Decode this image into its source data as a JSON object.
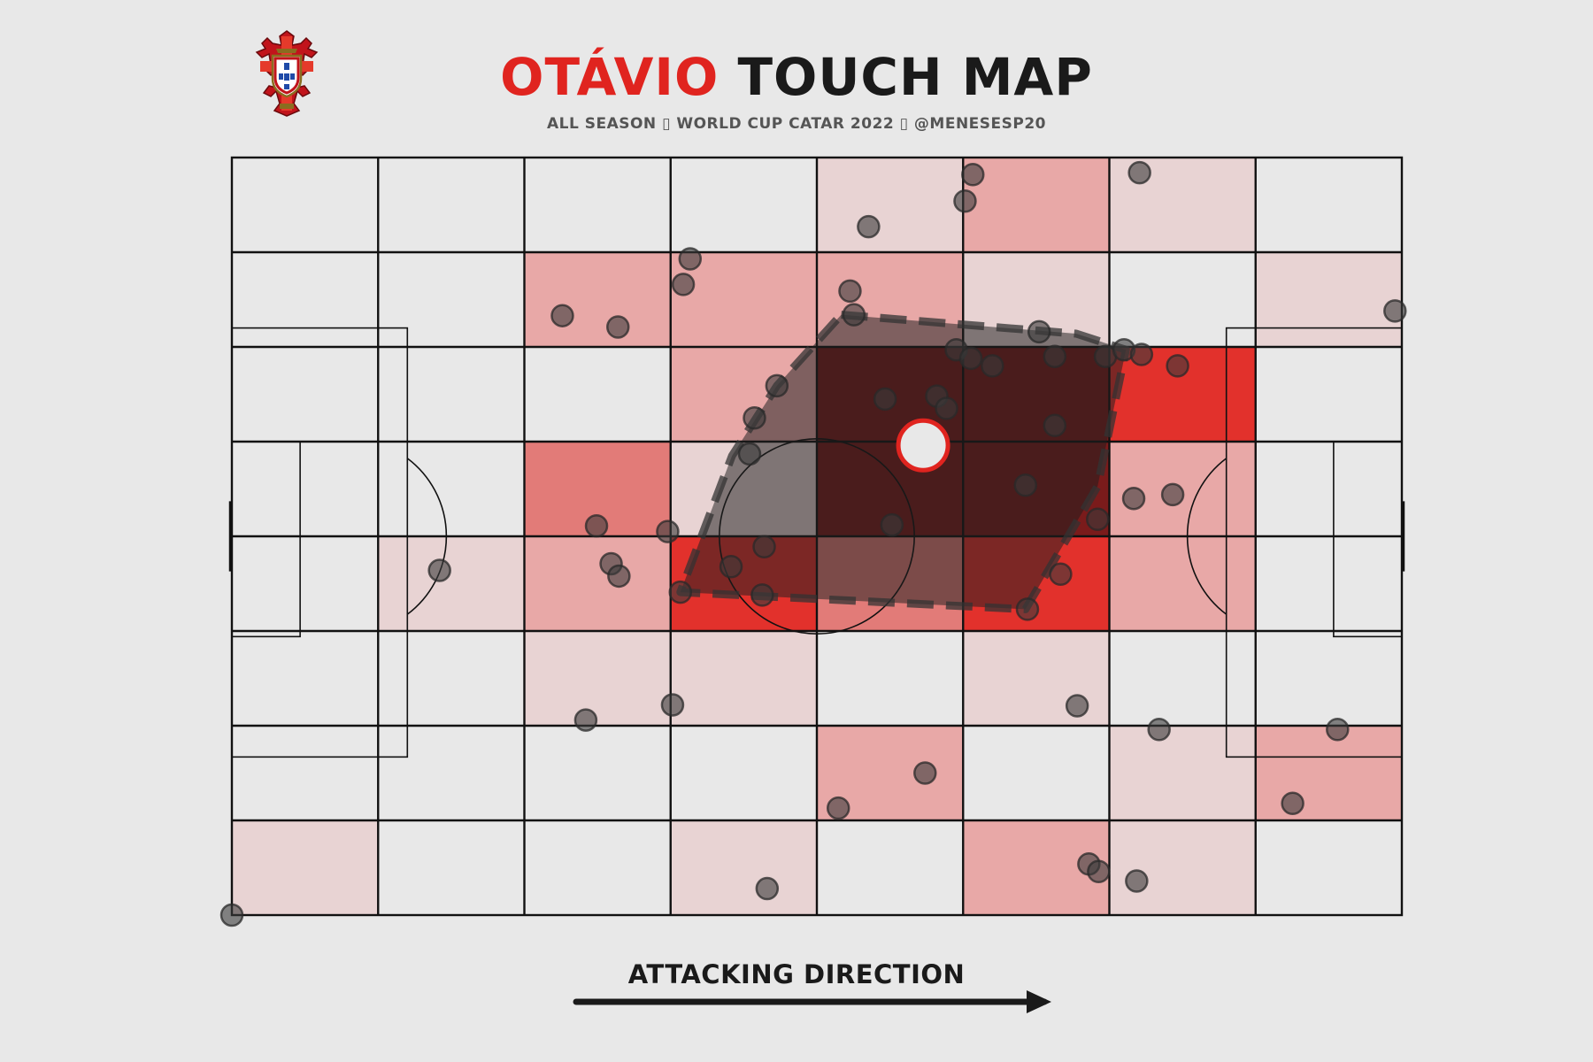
{
  "header": {
    "player_name": "OTÁVIO",
    "title_rest": "TOUCH MAP",
    "subtitle": "ALL SEASON ▯ WORLD CUP CATAR 2022 ▯ @MENESESP20"
  },
  "footer": {
    "attacking_direction_label": "ATTACKING DIRECTION"
  },
  "colors": {
    "background": "#e8e8e8",
    "accent_red": "#e0241f",
    "title_dark": "#1a1a1a",
    "touch_marker": "#3a3a3a",
    "hull_fill": "#1e1e1e",
    "centroid_outline": "#e0241f"
  },
  "icons": {
    "crest": "portugal-fpf-crest-icon"
  },
  "chart_data": {
    "type": "scatter",
    "pitch": {
      "length": 120,
      "width": 80,
      "vertical_stripes": 8,
      "horizontal_bands": 8
    },
    "touch_density_heatmap": [
      [
        0,
        0,
        0,
        0,
        1,
        2,
        1,
        0
      ],
      [
        0,
        0,
        2,
        2,
        2,
        1,
        0,
        1
      ],
      [
        0,
        0,
        0,
        2,
        5,
        5,
        4,
        0
      ],
      [
        0,
        0,
        3,
        1,
        5,
        5,
        2,
        0
      ],
      [
        0,
        1,
        2,
        4,
        3,
        4,
        2,
        0
      ],
      [
        0,
        0,
        1,
        1,
        0,
        1,
        0,
        0
      ],
      [
        0,
        0,
        0,
        0,
        2,
        0,
        1,
        2
      ],
      [
        1,
        0,
        0,
        1,
        0,
        2,
        1,
        0
      ]
    ],
    "touches": [
      {
        "x": 76.0,
        "y": 1.8
      },
      {
        "x": 75.2,
        "y": 4.6
      },
      {
        "x": 65.3,
        "y": 7.3
      },
      {
        "x": 93.1,
        "y": 1.6
      },
      {
        "x": 47.0,
        "y": 10.7
      },
      {
        "x": 46.3,
        "y": 13.4
      },
      {
        "x": 33.9,
        "y": 16.7
      },
      {
        "x": 39.6,
        "y": 17.9
      },
      {
        "x": 63.4,
        "y": 14.1
      },
      {
        "x": 63.8,
        "y": 16.6
      },
      {
        "x": 119.3,
        "y": 16.2
      },
      {
        "x": 74.3,
        "y": 20.3
      },
      {
        "x": 75.8,
        "y": 21.2
      },
      {
        "x": 78.0,
        "y": 22.0
      },
      {
        "x": 84.4,
        "y": 21.0
      },
      {
        "x": 82.8,
        "y": 18.4
      },
      {
        "x": 89.6,
        "y": 21.0
      },
      {
        "x": 91.5,
        "y": 20.3
      },
      {
        "x": 93.3,
        "y": 20.8
      },
      {
        "x": 97.0,
        "y": 22.0
      },
      {
        "x": 55.9,
        "y": 24.1
      },
      {
        "x": 53.6,
        "y": 27.5
      },
      {
        "x": 67.0,
        "y": 25.5
      },
      {
        "x": 72.3,
        "y": 25.2
      },
      {
        "x": 73.3,
        "y": 26.5
      },
      {
        "x": 84.4,
        "y": 28.3
      },
      {
        "x": 53.1,
        "y": 31.3
      },
      {
        "x": 81.4,
        "y": 34.6
      },
      {
        "x": 92.5,
        "y": 36.0
      },
      {
        "x": 96.5,
        "y": 35.6
      },
      {
        "x": 88.8,
        "y": 38.2
      },
      {
        "x": 37.4,
        "y": 38.9
      },
      {
        "x": 44.7,
        "y": 39.5
      },
      {
        "x": 67.7,
        "y": 38.8
      },
      {
        "x": 54.6,
        "y": 41.1
      },
      {
        "x": 21.3,
        "y": 43.6
      },
      {
        "x": 38.9,
        "y": 42.9
      },
      {
        "x": 39.7,
        "y": 44.2
      },
      {
        "x": 51.2,
        "y": 43.2
      },
      {
        "x": 46.0,
        "y": 45.9
      },
      {
        "x": 54.4,
        "y": 46.2
      },
      {
        "x": 85.0,
        "y": 44.0
      },
      {
        "x": 81.6,
        "y": 47.7
      },
      {
        "x": 45.2,
        "y": 57.8
      },
      {
        "x": 36.3,
        "y": 59.4
      },
      {
        "x": 86.7,
        "y": 57.9
      },
      {
        "x": 95.1,
        "y": 60.4
      },
      {
        "x": 113.4,
        "y": 60.4
      },
      {
        "x": 71.1,
        "y": 65.0
      },
      {
        "x": 62.2,
        "y": 68.7
      },
      {
        "x": 108.8,
        "y": 68.2
      },
      {
        "x": 87.9,
        "y": 74.6
      },
      {
        "x": 88.9,
        "y": 75.4
      },
      {
        "x": 92.8,
        "y": 76.4
      },
      {
        "x": 54.9,
        "y": 77.2
      },
      {
        "x": 0.0,
        "y": 80.0
      }
    ],
    "convex_hull": [
      {
        "x": 62.5,
        "y": 16.6
      },
      {
        "x": 86.6,
        "y": 18.6
      },
      {
        "x": 91.7,
        "y": 20.3
      },
      {
        "x": 88.8,
        "y": 34.7
      },
      {
        "x": 81.4,
        "y": 47.7
      },
      {
        "x": 46.0,
        "y": 45.9
      },
      {
        "x": 51.3,
        "y": 31.5
      },
      {
        "x": 55.9,
        "y": 24.1
      }
    ],
    "average_position": {
      "x": 70.9,
      "y": 30.4
    }
  }
}
